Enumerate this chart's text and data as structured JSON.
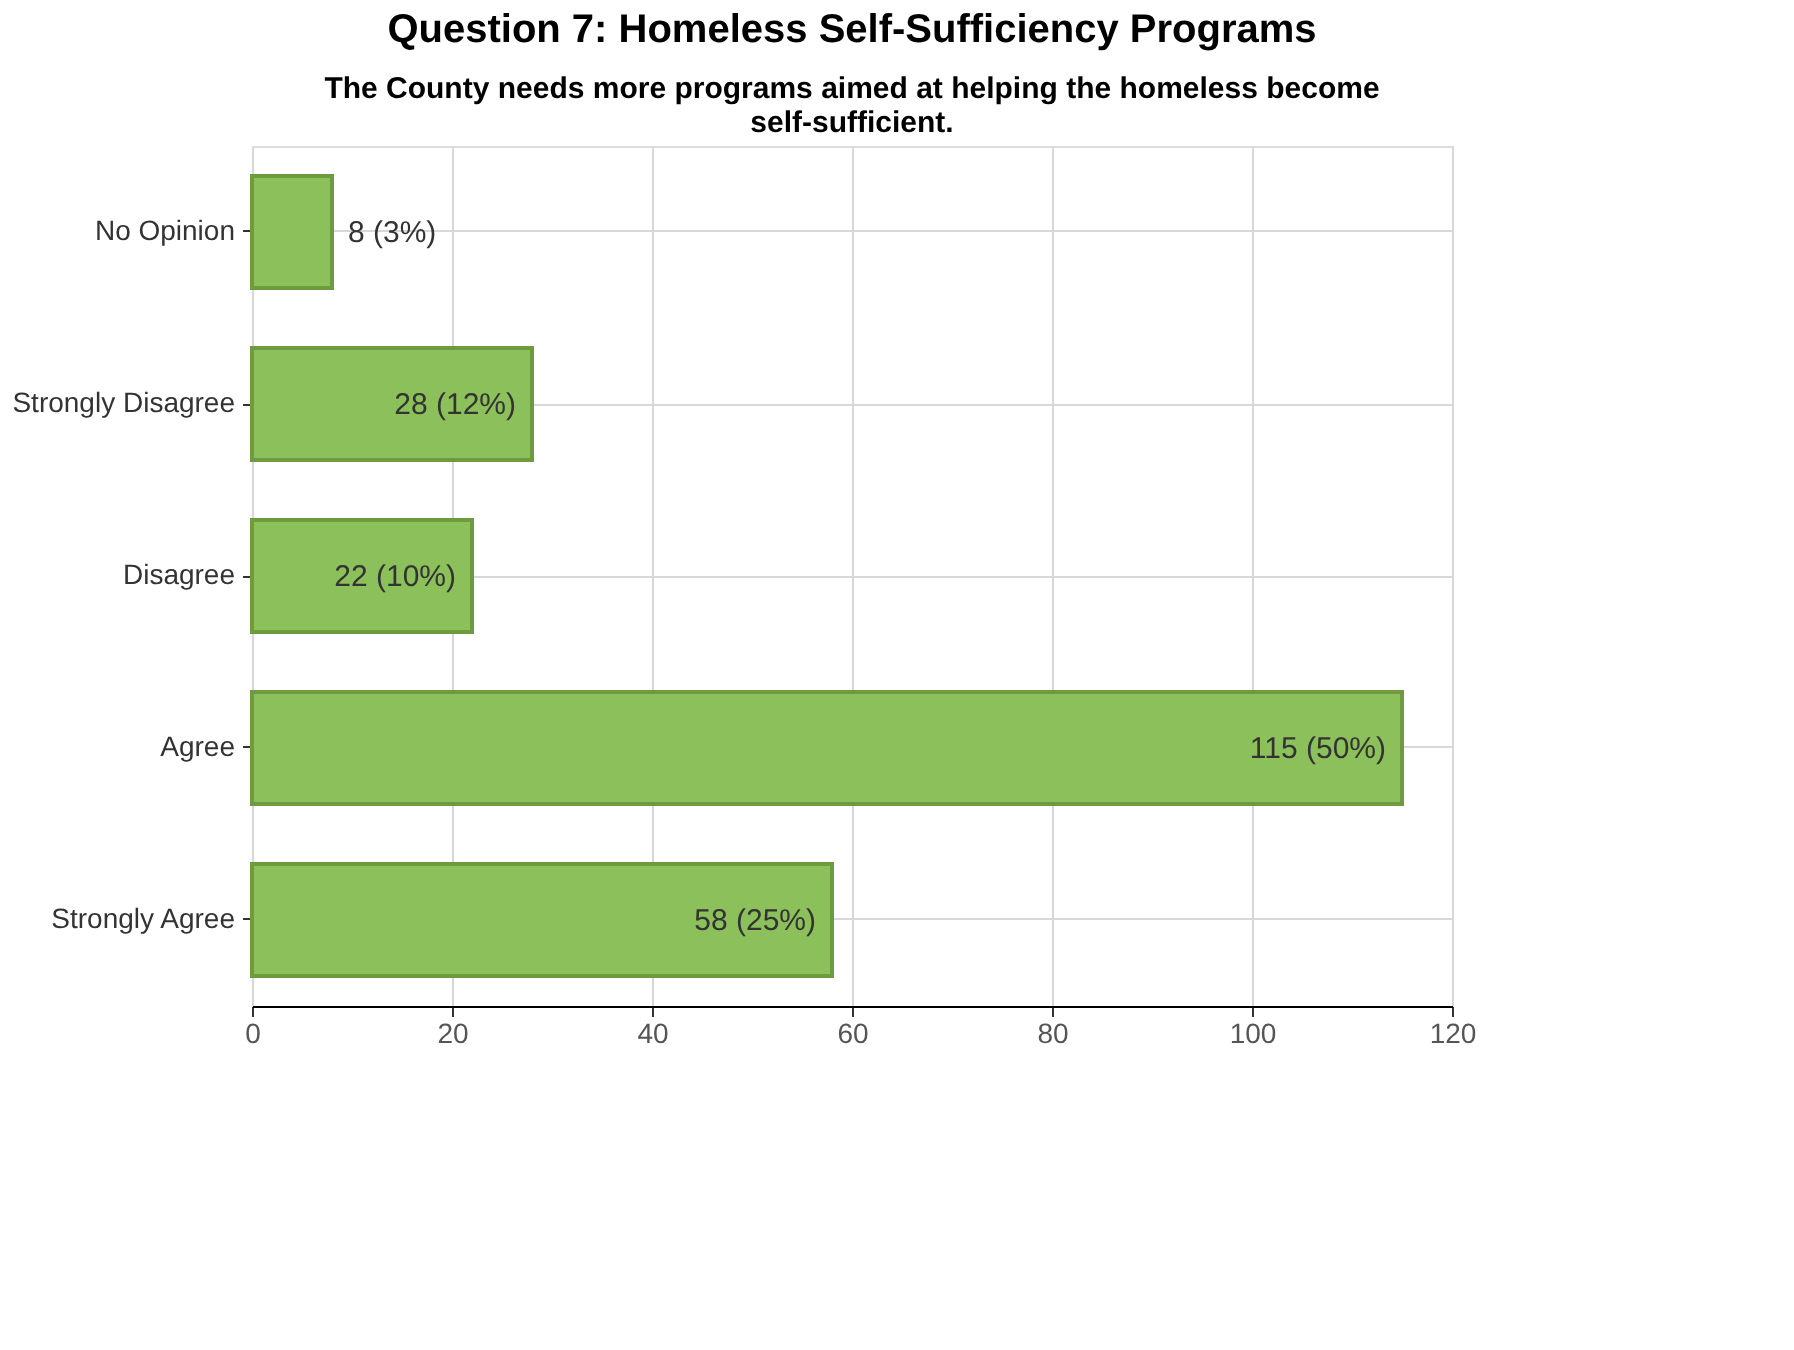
{
  "chart_data": {
    "type": "bar",
    "orientation": "horizontal",
    "title": "Question 7: Homeless Self-Sufficiency Programs",
    "subtitle": "The County needs more programs aimed at helping the homeless become self-sufficient.",
    "categories": [
      "No Opinion",
      "Strongly Disagree",
      "Disagree",
      "Agree",
      "Strongly Agree"
    ],
    "values": [
      8,
      28,
      22,
      115,
      58
    ],
    "value_labels": [
      "8 (3%)",
      "28 (12%)",
      "22 (10%)",
      "115 (50%)",
      "58 (25%)"
    ],
    "color": "#8cc05a",
    "xlim": [
      0,
      120
    ],
    "xticks": [
      0,
      20,
      40,
      60,
      80,
      100,
      120
    ],
    "grid": true
  }
}
